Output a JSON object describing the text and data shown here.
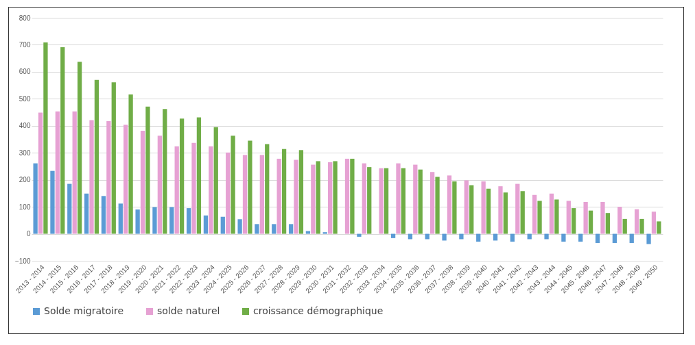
{
  "chart_data": {
    "type": "bar",
    "categories": [
      "2013 - 2014",
      "2014 - 2015",
      "2015 - 2016",
      "2016 - 2017",
      "2017 - 2018",
      "2018 - 2019",
      "2019 - 2020",
      "2020 - 2021",
      "2021 - 2022",
      "2022 - 2023",
      "2023 - 2024",
      "2024 - 2025",
      "2025 - 2026",
      "2026 - 2027",
      "2027 - 2028",
      "2028 - 2029",
      "2029 - 2030",
      "2030 - 2031",
      "2031 - 2032",
      "2032 - 2033",
      "2033 - 2034",
      "2034 - 2035",
      "2035 - 2036",
      "2036 - 2037",
      "2037 - 2038",
      "2038 - 2039",
      "2039 - 2040",
      "2040 - 2041",
      "2041 - 2042",
      "2042 - 2043",
      "2043 - 2044",
      "2044 - 2045",
      "2045 - 2046",
      "2046 - 2047",
      "2047 - 2048",
      "2048 - 2049",
      "2049 - 2050"
    ],
    "series": [
      {
        "name": "Solde migratoire",
        "color": "#5b9bd5",
        "values": [
          261,
          233,
          185,
          149,
          140,
          112,
          90,
          99,
          99,
          95,
          68,
          63,
          54,
          36,
          36,
          36,
          10,
          6,
          0,
          -11,
          0,
          -16,
          -20,
          -20,
          -25,
          -20,
          -29,
          -25,
          -29,
          -20,
          -20,
          -29,
          -29,
          -34,
          -34,
          -34,
          -38
        ]
      },
      {
        "name": "solde naturel",
        "color": "#e6a1d3",
        "values": [
          449,
          453,
          453,
          421,
          417,
          404,
          382,
          363,
          324,
          337,
          324,
          301,
          292,
          292,
          278,
          274,
          256,
          265,
          278,
          261,
          243,
          261,
          256,
          229,
          216,
          198,
          194,
          176,
          185,
          144,
          149,
          122,
          118,
          118,
          100,
          91,
          82
        ]
      },
      {
        "name": "croissance démographique",
        "color": "#70ad47",
        "values": [
          709,
          691,
          637,
          570,
          561,
          516,
          471,
          462,
          427,
          431,
          395,
          363,
          345,
          332,
          314,
          310,
          269,
          269,
          278,
          247,
          243,
          243,
          238,
          211,
          194,
          180,
          167,
          153,
          158,
          122,
          127,
          95,
          86,
          77,
          55,
          55,
          46
        ]
      }
    ],
    "ylim": [
      -100,
      800
    ],
    "yticks": [
      -100,
      0,
      100,
      200,
      300,
      400,
      500,
      600,
      700,
      800
    ],
    "grid": "y",
    "legend": "bottom"
  }
}
